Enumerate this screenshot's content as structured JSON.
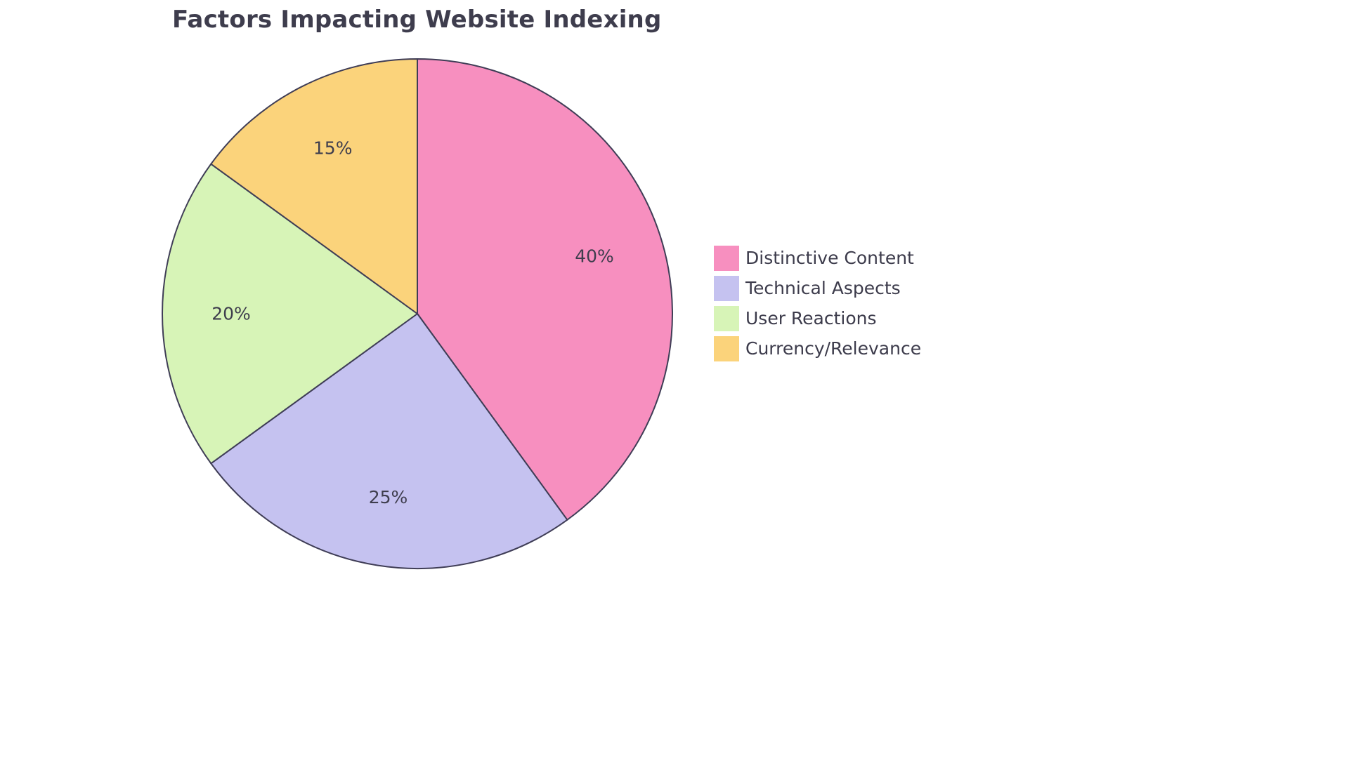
{
  "chart_data": {
    "type": "pie",
    "title": "Factors Impacting Website Indexing",
    "labels": [
      "Distinctive Content",
      "Technical Aspects",
      "User Reactions",
      "Currency/Relevance"
    ],
    "values": [
      40,
      25,
      20,
      15
    ],
    "percent_labels": [
      "40%",
      "25%",
      "20%",
      "15%"
    ],
    "colors": [
      "#F78FBF",
      "#C5C2F0",
      "#D7F4B7",
      "#FBD37B"
    ],
    "stroke_color": "#3F3D56",
    "text_color": "#3E3D4D",
    "start_angle_deg": -90,
    "direction": "clockwise",
    "legend_position": "right",
    "grid": false
  }
}
